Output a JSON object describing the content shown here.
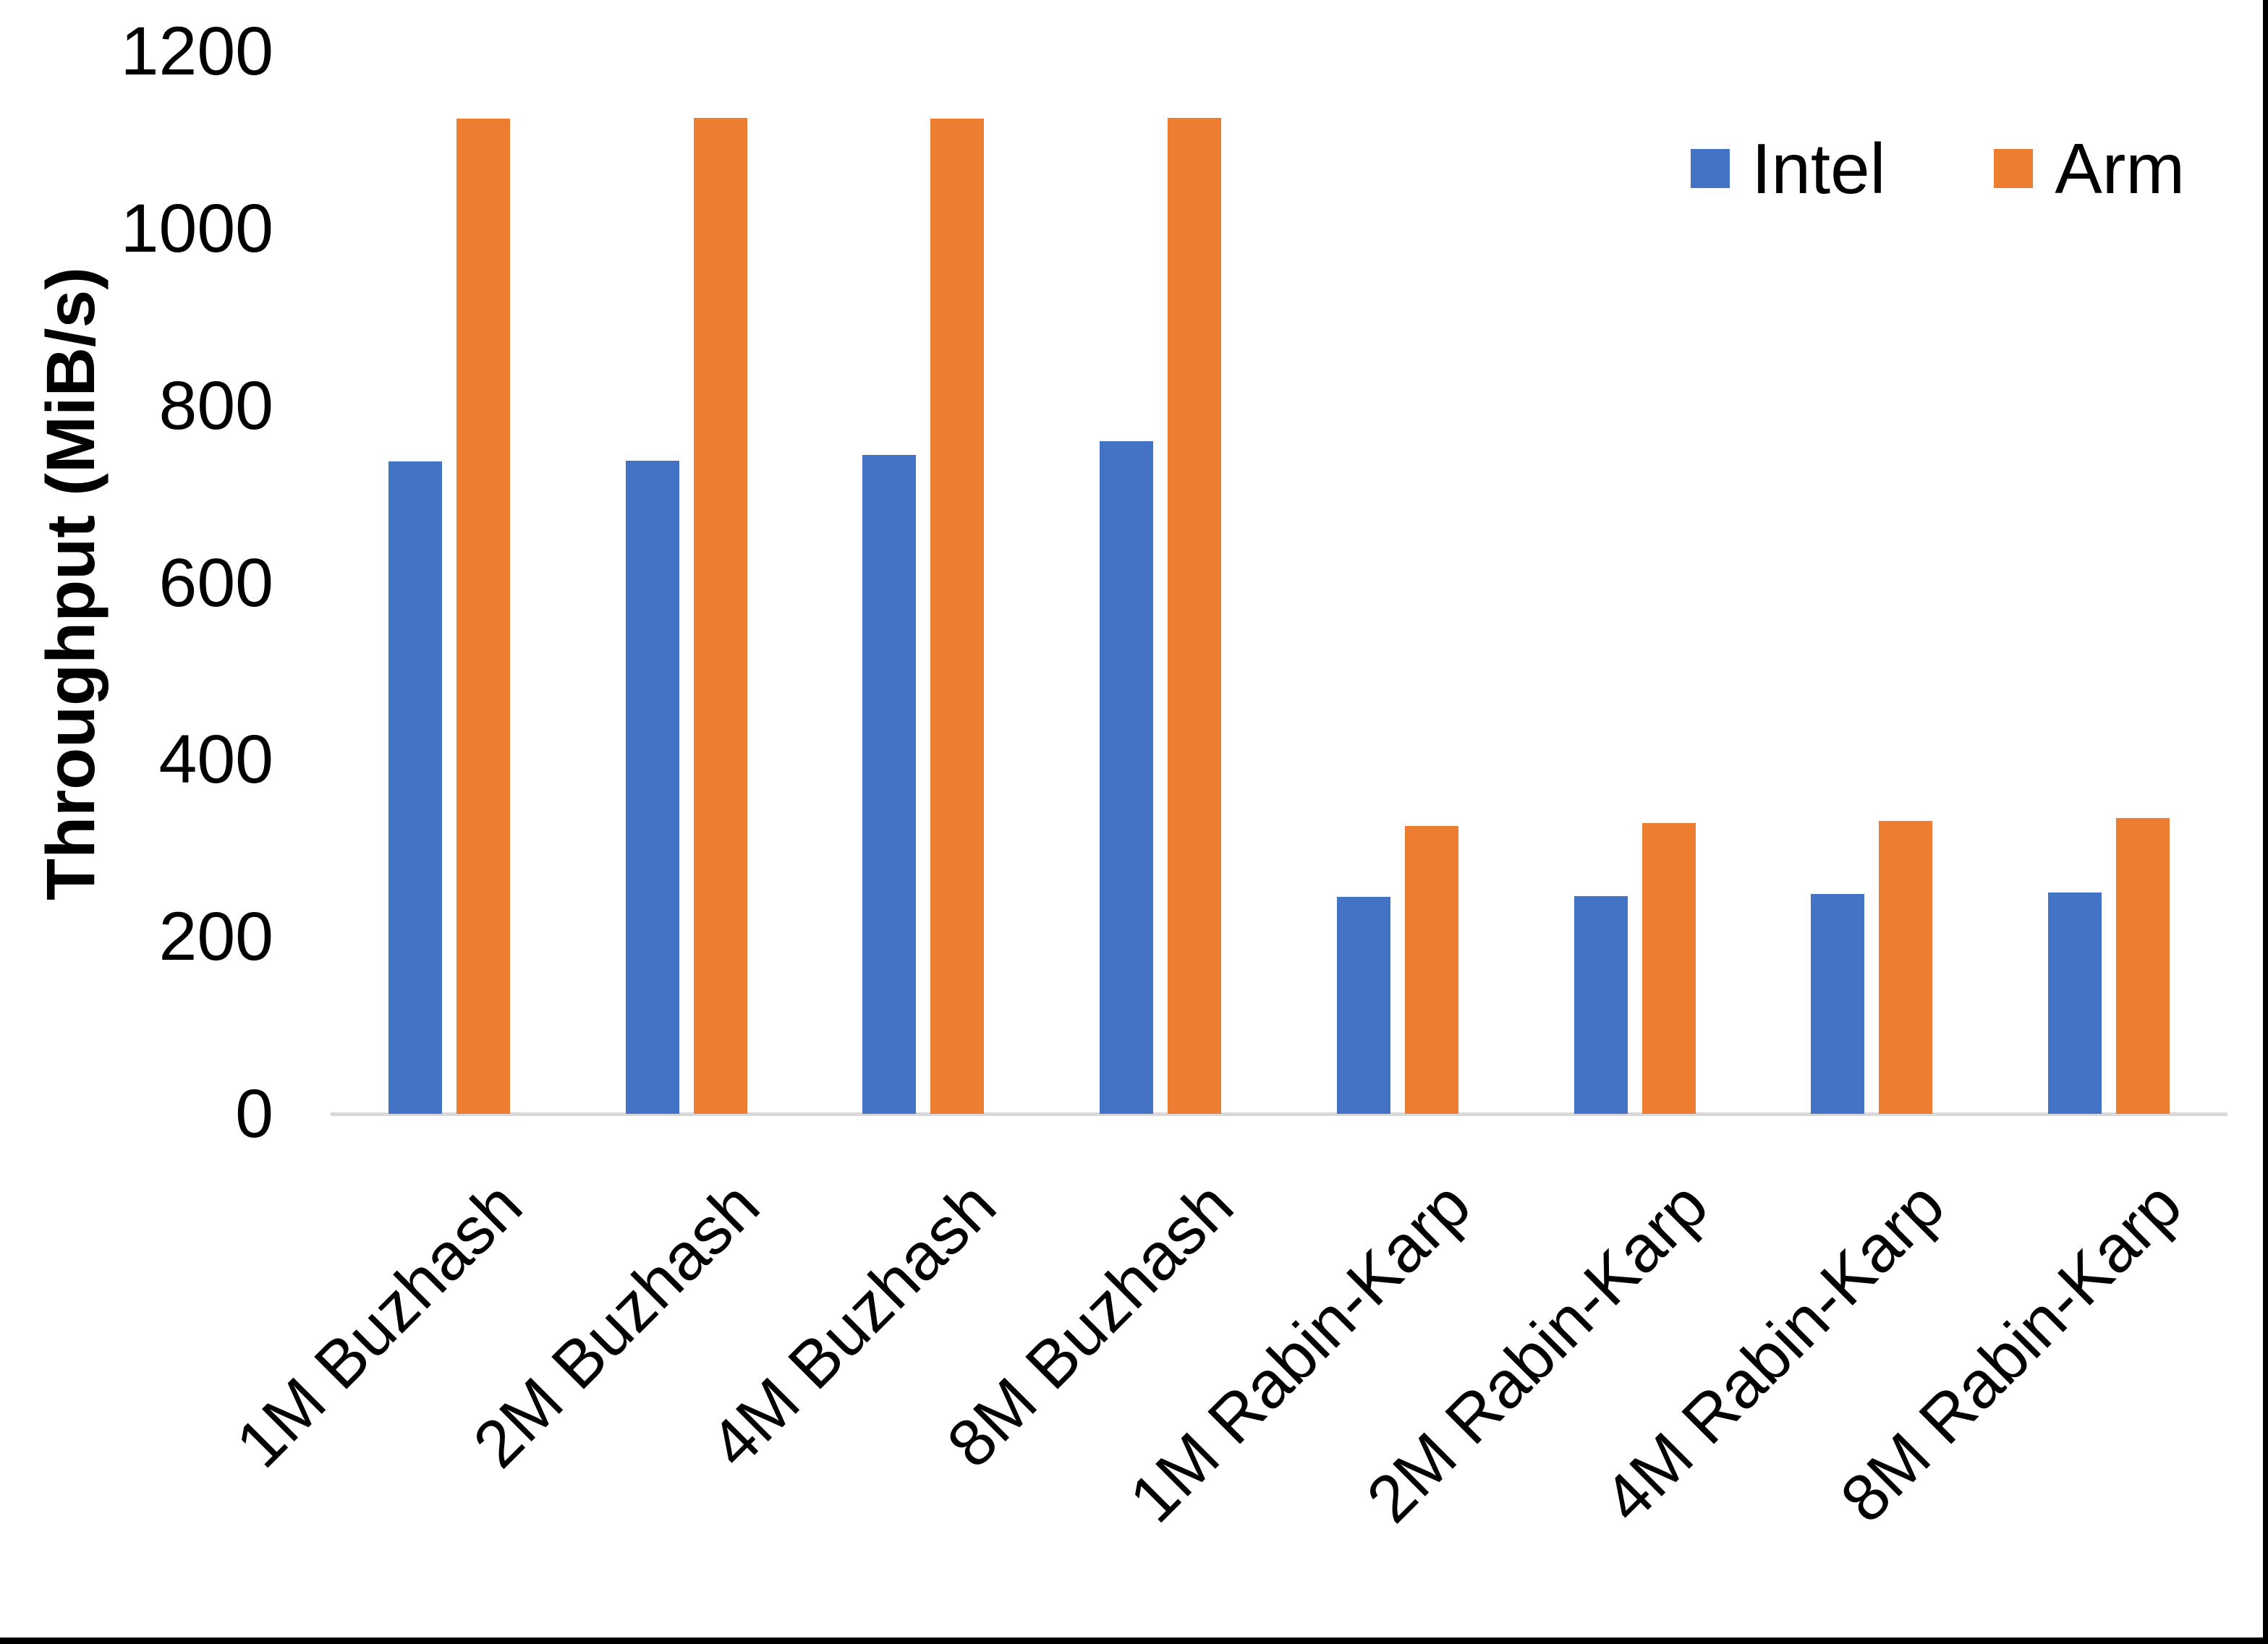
{
  "chart_data": {
    "type": "bar",
    "title": "",
    "xlabel": "",
    "ylabel": "Throughput (MiB/s)",
    "categories": [
      "1M Buzhash",
      "2M Buzhash",
      "4M Buzhash",
      "8M Buzhash",
      "1M Rabin-Karp",
      "2M Rabin-Karp",
      "4M Rabin-Karp",
      "8M Rabin-Karp"
    ],
    "series": [
      {
        "name": "Intel",
        "color": "#4472C4",
        "values": [
          737,
          738,
          744,
          760,
          245,
          246,
          248,
          250
        ]
      },
      {
        "name": "Arm",
        "color": "#ED7D31",
        "values": [
          1124,
          1125,
          1124,
          1125,
          325,
          328,
          331,
          334
        ]
      }
    ],
    "ylim": [
      0,
      1200
    ],
    "ytick_interval": 200,
    "yticks": [
      0,
      200,
      400,
      600,
      800,
      1000,
      1200
    ],
    "grid": false,
    "legend_position": "top-right",
    "axis_line_color": "#D9D9D9",
    "text_color": "#000000",
    "background_color": "#FFFFFF",
    "border_color": "#000000"
  }
}
